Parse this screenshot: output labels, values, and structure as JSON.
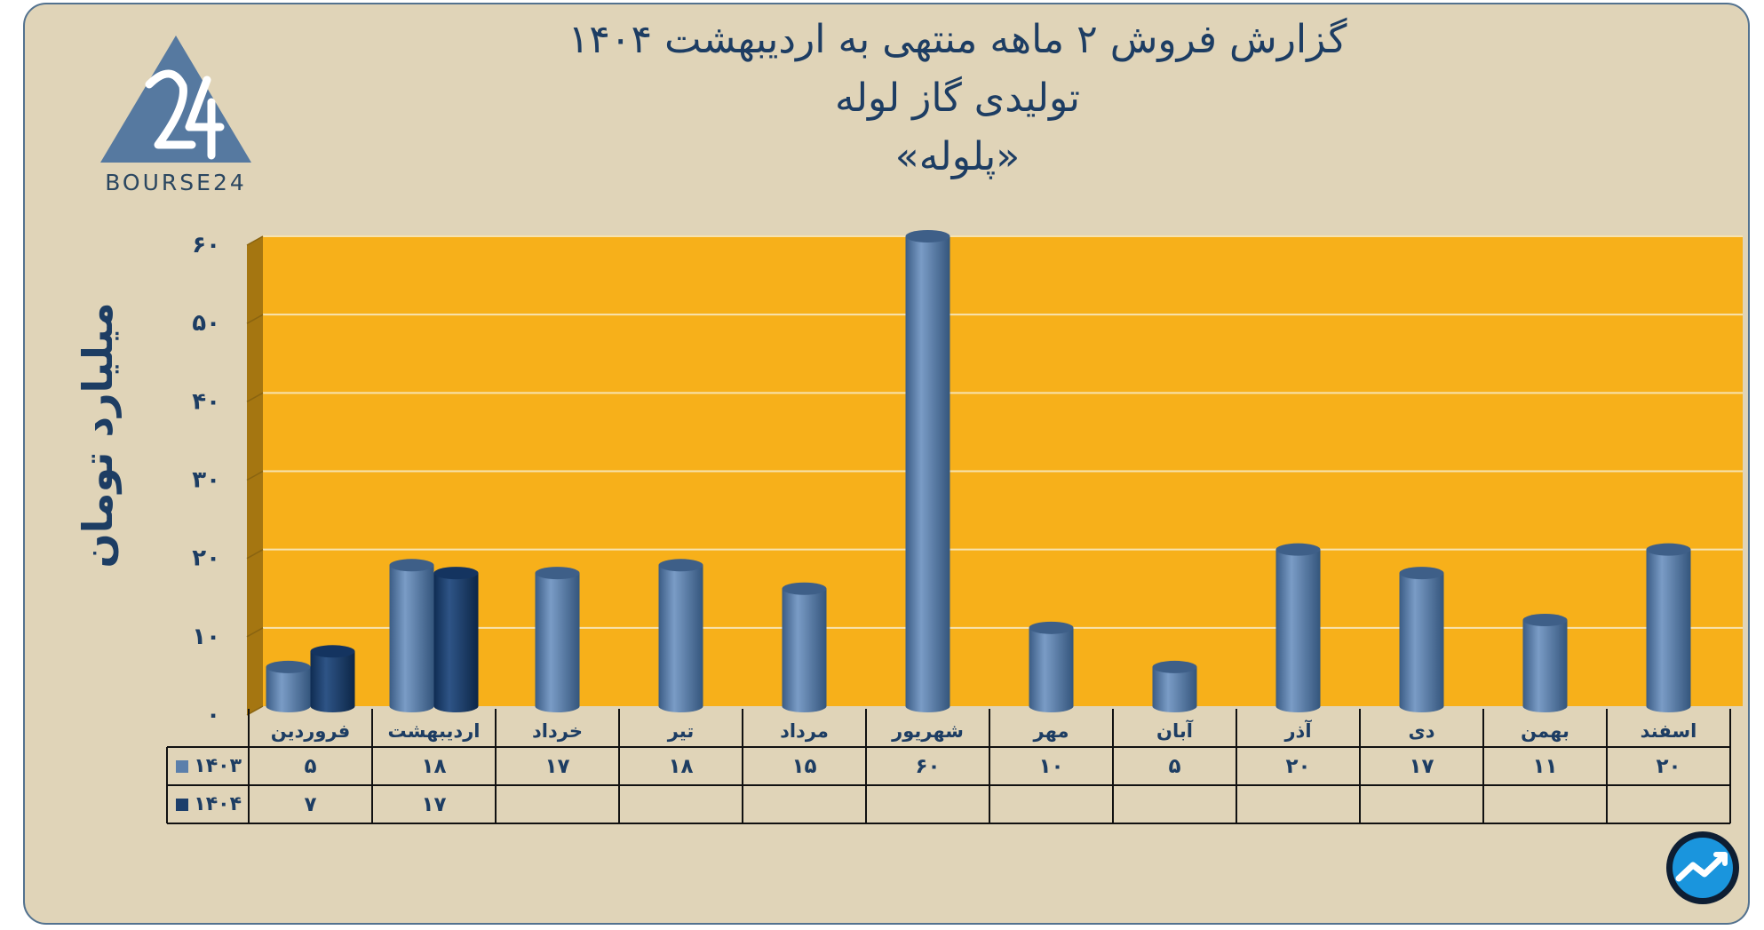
{
  "title": {
    "line1": "گزارش  فروش ۲ ماهه منتهی به اردیبهشت ۱۴۰۴",
    "line2": "تولیدی گاز لوله",
    "line3": "«پلوله»"
  },
  "logo": {
    "text": "BOURSE24"
  },
  "icons": {
    "logo": "bourse24-logo-icon",
    "corner": "trend-arrow-icon"
  },
  "colors": {
    "plot_bg": "#f7b01a",
    "series_1403": "#5b7fab",
    "series_1404": "#1d3f6b",
    "frame_bg": "#e0d4b8",
    "text": "#1d3d63"
  },
  "chart_data": {
    "type": "bar",
    "categories": [
      "فروردین",
      "اردیبهشت",
      "خرداد",
      "تیر",
      "مرداد",
      "شهریور",
      "مهر",
      "آبان",
      "آذر",
      "دی",
      "بهمن",
      "اسفند"
    ],
    "series": [
      {
        "name": "۱۴۰۳",
        "values": [
          5,
          18,
          17,
          18,
          15,
          60,
          10,
          5,
          20,
          17,
          11,
          20
        ],
        "labels": [
          "۵",
          "۱۸",
          "۱۷",
          "۱۸",
          "۱۵",
          "۶۰",
          "۱۰",
          "۵",
          "۲۰",
          "۱۷",
          "۱۱",
          "۲۰"
        ]
      },
      {
        "name": "۱۴۰۴",
        "values": [
          7,
          17,
          null,
          null,
          null,
          null,
          null,
          null,
          null,
          null,
          null,
          null
        ],
        "labels": [
          "۷",
          "۱۷",
          "",
          "",
          "",
          "",
          "",
          "",
          "",
          "",
          "",
          ""
        ]
      }
    ],
    "ylabel": "میلیارد تومان",
    "ylim": [
      0,
      60
    ],
    "yticks": [
      0,
      10,
      20,
      30,
      40,
      50,
      60
    ],
    "ytick_labels": [
      "۰",
      "۱۰",
      "۲۰",
      "۳۰",
      "۴۰",
      "۵۰",
      "۶۰"
    ],
    "grid": true,
    "legend": "data-table"
  }
}
